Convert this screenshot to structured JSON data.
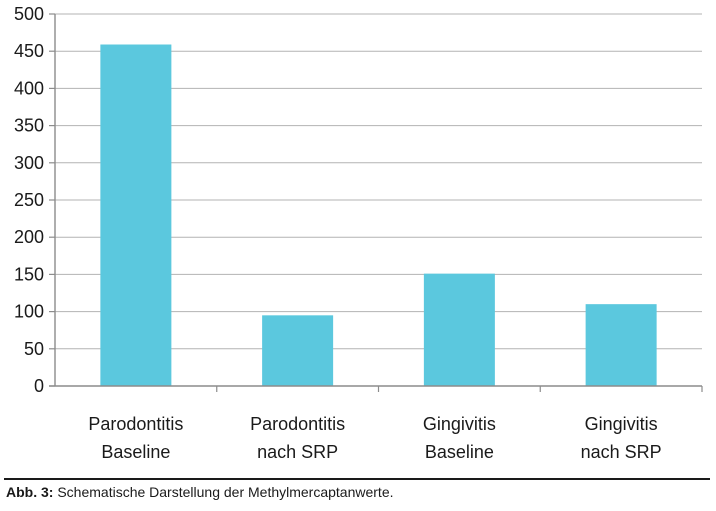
{
  "chart_data": {
    "type": "bar",
    "categories": [
      [
        "Parodontitis",
        "Baseline"
      ],
      [
        "Parodontitis",
        "nach SRP"
      ],
      [
        "Gingivitis",
        "Baseline"
      ],
      [
        "Gingivitis",
        "nach SRP"
      ]
    ],
    "values": [
      459,
      95,
      151,
      110
    ],
    "ylim": [
      0,
      500
    ],
    "yticks": [
      0,
      50,
      100,
      150,
      200,
      250,
      300,
      350,
      400,
      450,
      500
    ],
    "grid": true,
    "bar_color": "#5bc8de",
    "grid_color": "#b3b3b3",
    "axis_color": "#8c8c8c",
    "title": "",
    "xlabel": "",
    "ylabel": ""
  },
  "caption": {
    "lead": "Abb. 3:",
    "text": " Schematische Darstellung der Methylmercaptanwerte."
  }
}
